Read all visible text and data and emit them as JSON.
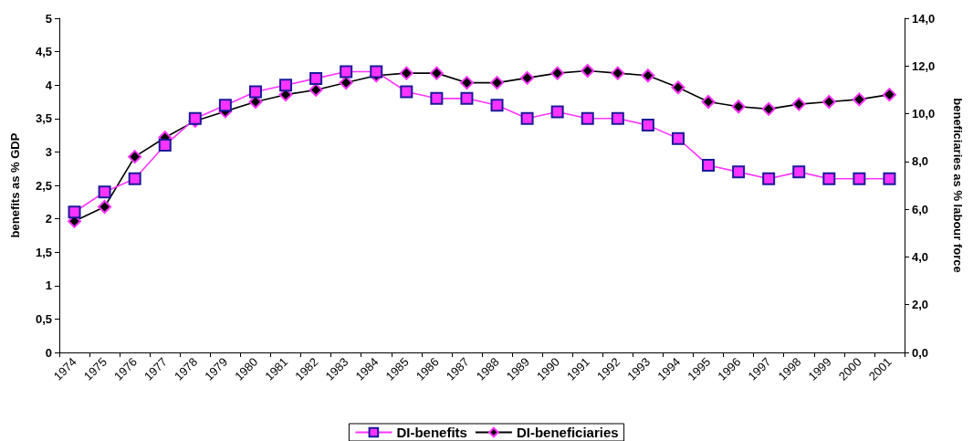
{
  "chart_data": {
    "type": "line",
    "ylabel": "benefits as % GDP",
    "y2label": "beneficiaries as % labour force",
    "categories": [
      "1974",
      "1975",
      "1976",
      "1977",
      "1978",
      "1979",
      "1980",
      "1981",
      "1982",
      "1983",
      "1984",
      "1985",
      "1986",
      "1987",
      "1988",
      "1989",
      "1990",
      "1991",
      "1992",
      "1993",
      "1994",
      "1995",
      "1996",
      "1997",
      "1998",
      "1999",
      "2000",
      "2001"
    ],
    "series": [
      {
        "name": "DI-benefits",
        "color": "#ff33ff",
        "marker": "square",
        "values": [
          2.1,
          2.4,
          2.6,
          3.1,
          3.5,
          3.7,
          3.9,
          4.0,
          4.1,
          4.2,
          4.2,
          3.9,
          3.8,
          3.8,
          3.7,
          3.5,
          3.6,
          3.5,
          3.5,
          3.4,
          3.2,
          2.8,
          2.7,
          2.6,
          2.7,
          2.6,
          2.6,
          2.6
        ]
      },
      {
        "name": "DI-beneficiaries",
        "color": "#000000",
        "marker": "diamond",
        "axis": "y2",
        "values": [
          5.5,
          6.1,
          8.2,
          9.0,
          9.7,
          10.1,
          10.5,
          10.8,
          11.0,
          11.3,
          11.6,
          11.7,
          11.7,
          11.3,
          11.3,
          11.5,
          11.7,
          11.8,
          11.7,
          11.6,
          11.1,
          10.5,
          10.3,
          10.2,
          10.4,
          10.5,
          10.6,
          10.8
        ]
      }
    ],
    "ylim": [
      0,
      5
    ],
    "yticks": [
      0,
      {
        "value": 0.5,
        "label": "0,5"
      },
      1,
      {
        "value": 1.5,
        "label": "1,5"
      },
      2,
      {
        "value": 2.5,
        "label": "2,5"
      },
      3,
      {
        "value": 3.5,
        "label": "3,5"
      },
      4,
      {
        "value": 4.5,
        "label": "4,5"
      },
      5
    ],
    "y2lim": [
      0,
      14
    ],
    "y2ticks": [
      {
        "value": 0,
        "label": "0,0"
      },
      {
        "value": 2,
        "label": "2,0"
      },
      {
        "value": 4,
        "label": "4,0"
      },
      {
        "value": 6,
        "label": "6,0"
      },
      {
        "value": 8,
        "label": "8,0"
      },
      {
        "value": 10,
        "label": "10,0"
      },
      {
        "value": 12,
        "label": "12,0"
      },
      {
        "value": 14,
        "label": "14,0"
      }
    ],
    "grid": false,
    "legend": "bottom",
    "line_style": "solid"
  }
}
